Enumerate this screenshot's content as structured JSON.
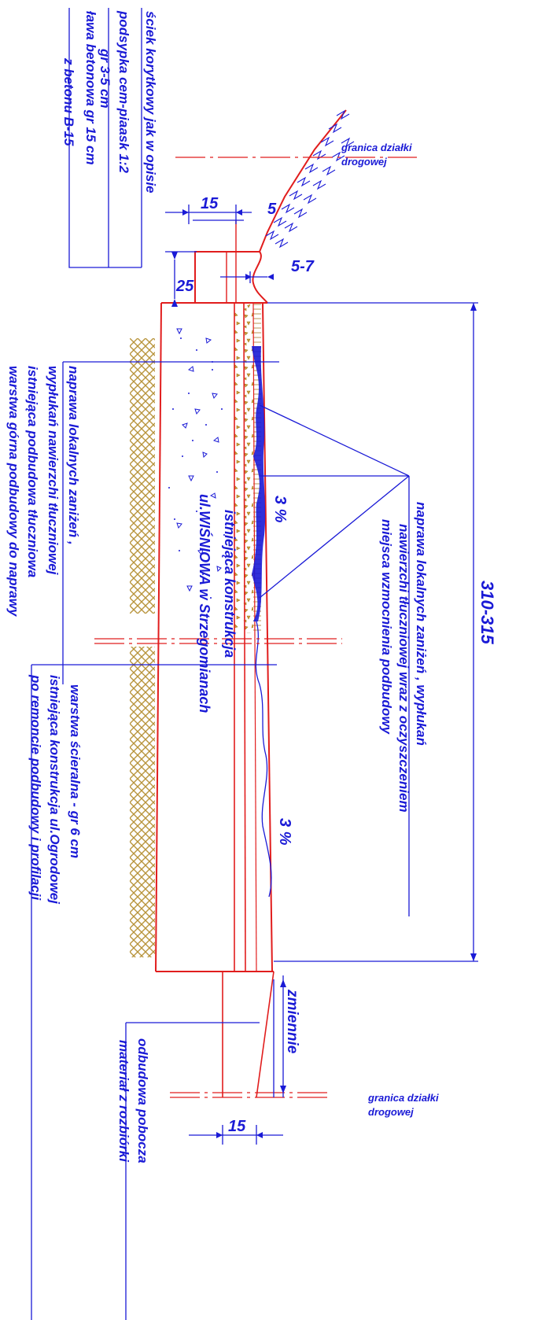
{
  "colors": {
    "structure": "#e11d1d",
    "annotation": "#1a1ad6",
    "hatch": "#b8943c"
  },
  "labels": {
    "gutter_1": "ściek korytkowy jak w opisie",
    "gutter_2": "podsypka cem-piaask 1:2",
    "gutter_3": "gr 3-5 cm",
    "gutter_4": "ława betonowa gr 15 cm",
    "gutter_5": "z betonu B-15",
    "plot_top_1": "granica działki",
    "plot_top_2": "drogowej",
    "plot_bottom_1": "granica działki",
    "plot_bottom_2": "drogowej",
    "repair_right_1": "naprawa lokalnych  zaniżeń , wypłukań",
    "repair_right_2": "nawierzchi tłuczniowej  wraz z oczyszczeniem",
    "repair_right_3": "miejsca wzmocnienia podbudowy",
    "repair_left_1": "naprawa lokalnych  zaniżeń ,",
    "repair_left_2": "wypłukań nawierzchi tłuczniowej",
    "repair_left_3": "istniejąca podbudowa tłuczniowa",
    "repair_left_4": "warstwa górna podbudowy do naprawy",
    "existing_1": "istniejąca konstrukcja",
    "existing_2": "ul.WIŚNIOWA w Strzegomianach",
    "wear_1": "warstwa ścieralna - gr 6 cm",
    "wear_2": "istniejąca konstrukcja ul.Ogrodowej",
    "wear_3": "po remoncie podbudowy i profilacji",
    "shoulder_1": "odbudowa pobocza",
    "shoulder_2": "materiał z rozbiórki",
    "variable": "zmiennie"
  },
  "dimensions": {
    "width_top": "15",
    "offset_top": "5",
    "gutter_depth": "25",
    "gutter_range": "5-7",
    "total_width": "310-315",
    "slope_1": "3 %",
    "slope_2": "3 %",
    "width_bottom": "15"
  }
}
